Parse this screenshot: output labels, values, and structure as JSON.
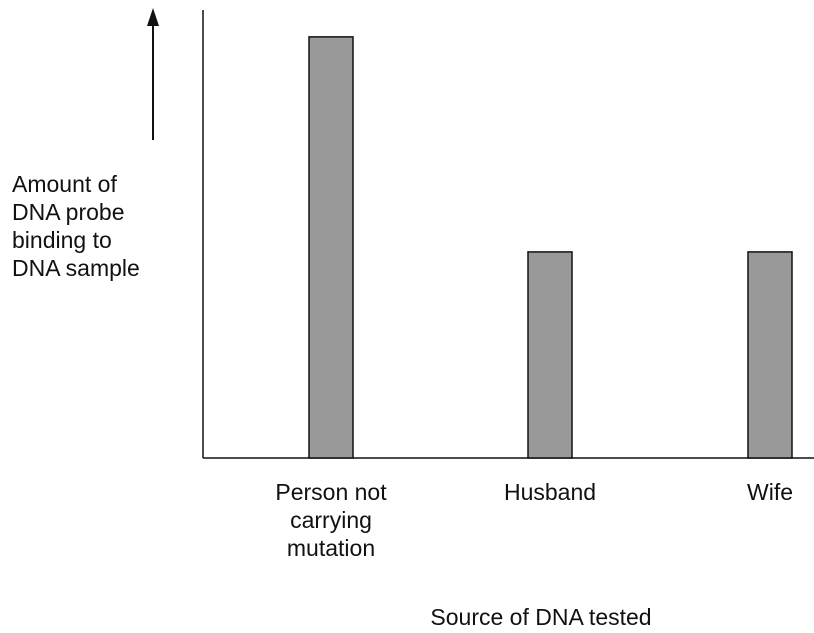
{
  "chart_data": {
    "type": "bar",
    "ylabel": "Amount of DNA probe binding to DNA sample",
    "xlabel": "Source of DNA tested",
    "categories": [
      "Person not carrying mutation",
      "Husband",
      "Wife"
    ],
    "values": [
      94,
      46,
      46
    ],
    "color": "#999999",
    "ylim": [
      0,
      100
    ]
  }
}
